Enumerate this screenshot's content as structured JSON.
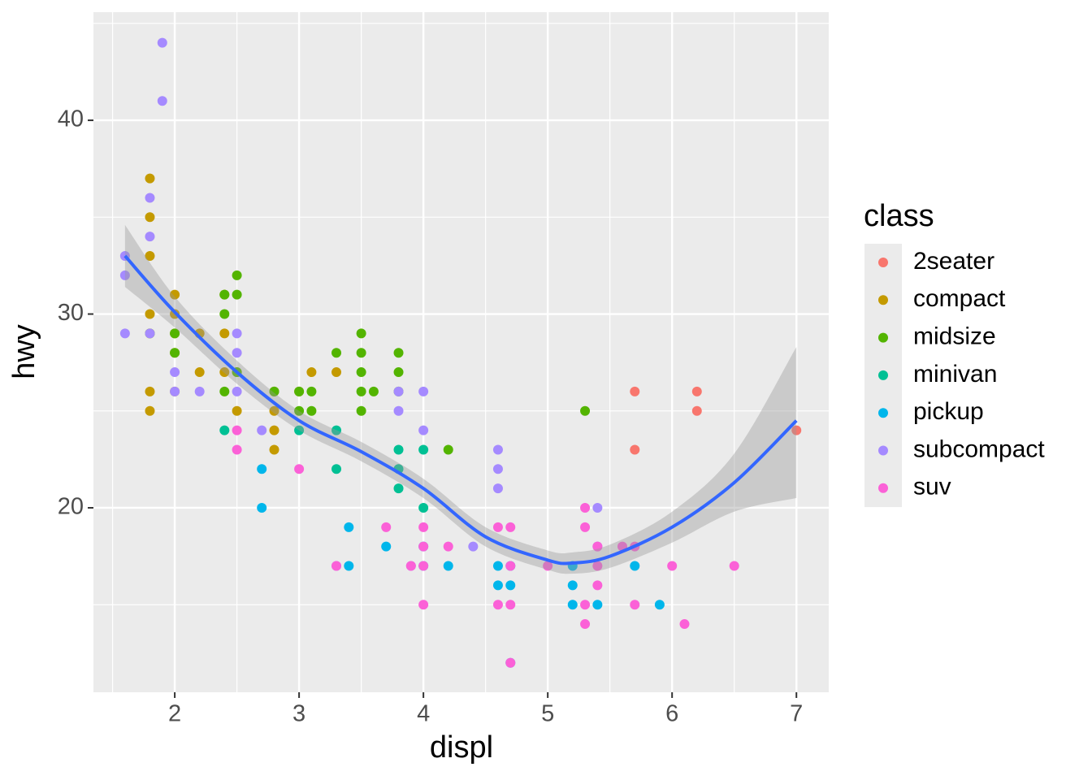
{
  "chart_data": {
    "type": "scatter",
    "x_label": "displ",
    "y_label": "hwy",
    "legend_title": "class",
    "xlim": [
      1.346,
      7.26
    ],
    "ylim": [
      10.48,
      45.58
    ],
    "xticks": [
      2,
      3,
      4,
      5,
      6,
      7
    ],
    "yticks": [
      20,
      30,
      40
    ],
    "x_minor_grid": [
      1.5,
      2.5,
      3.5,
      4.5,
      5.5,
      6.5
    ],
    "y_minor_grid": [
      15,
      25,
      35,
      45
    ],
    "grid": true,
    "legend_position": "right",
    "series": [
      {
        "name": "2seater",
        "color": "#F8766D",
        "x": [
          5.7,
          5.7,
          6.2,
          6.2,
          7.0
        ],
        "y": [
          26,
          23,
          26,
          25,
          24
        ]
      },
      {
        "name": "compact",
        "color": "#C49A00",
        "x": [
          1.8,
          1.8,
          1.8,
          1.8,
          1.8,
          1.8,
          1.8,
          2.0,
          2.0,
          2.0,
          2.0,
          2.0,
          2.2,
          2.2,
          2.4,
          2.4,
          2.4,
          2.5,
          2.5,
          2.8,
          2.8,
          2.8,
          2.8,
          3.0,
          3.1,
          3.3
        ],
        "y": [
          37,
          35,
          33,
          30,
          29,
          26,
          25,
          31,
          30,
          29,
          28,
          26,
          29,
          27,
          31,
          29,
          27,
          27,
          25,
          26,
          25,
          24,
          23,
          26,
          27,
          27
        ]
      },
      {
        "name": "midsize",
        "color": "#53B400",
        "x": [
          1.8,
          2.0,
          2.0,
          2.4,
          2.4,
          2.4,
          2.5,
          2.5,
          2.5,
          2.8,
          3.0,
          3.0,
          3.1,
          3.1,
          3.3,
          3.5,
          3.5,
          3.5,
          3.5,
          3.5,
          3.6,
          3.8,
          3.8,
          3.8,
          4.2,
          5.3
        ],
        "y": [
          29,
          29,
          28,
          31,
          30,
          26,
          32,
          31,
          27,
          26,
          26,
          25,
          26,
          25,
          28,
          29,
          28,
          27,
          26,
          25,
          26,
          28,
          27,
          26,
          23,
          25
        ]
      },
      {
        "name": "minivan",
        "color": "#00C094",
        "x": [
          2.4,
          3.0,
          3.3,
          3.3,
          3.8,
          3.8,
          3.8,
          4.0,
          4.0
        ],
        "y": [
          24,
          24,
          24,
          22,
          23,
          22,
          21,
          23,
          20
        ]
      },
      {
        "name": "pickup",
        "color": "#00B6EB",
        "x": [
          2.7,
          2.7,
          3.4,
          3.4,
          3.7,
          4.0,
          4.0,
          4.2,
          4.6,
          4.6,
          4.7,
          4.7,
          4.7,
          5.2,
          5.2,
          5.2,
          5.4,
          5.7,
          5.9
        ],
        "y": [
          22,
          20,
          19,
          17,
          18,
          18,
          17,
          17,
          17,
          16,
          17,
          16,
          12,
          17,
          16,
          15,
          15,
          17,
          15
        ]
      },
      {
        "name": "subcompact",
        "color": "#A58AFF",
        "x": [
          1.6,
          1.6,
          1.6,
          1.8,
          1.8,
          1.8,
          1.9,
          1.9,
          2.0,
          2.0,
          2.2,
          2.5,
          2.5,
          2.5,
          2.7,
          3.8,
          3.8,
          4.0,
          4.0,
          4.6,
          4.6,
          4.6,
          5.4,
          3.3,
          3.9,
          4.4,
          5.4
        ],
        "y": [
          33,
          32,
          29,
          36,
          34,
          29,
          44,
          41,
          27,
          26,
          26,
          29,
          28,
          26,
          24,
          26,
          25,
          26,
          24,
          23,
          22,
          21,
          20,
          17,
          17,
          18,
          18
        ]
      },
      {
        "name": "suv",
        "color": "#FB61D7",
        "x": [
          2.5,
          2.5,
          3.0,
          3.3,
          3.7,
          3.9,
          4.0,
          4.0,
          4.0,
          4.0,
          4.2,
          4.6,
          4.6,
          4.7,
          4.7,
          4.7,
          5.0,
          5.3,
          5.3,
          5.3,
          5.3,
          5.4,
          5.4,
          5.4,
          5.6,
          5.7,
          5.7,
          6.0,
          6.1,
          6.5,
          4.7
        ],
        "y": [
          24,
          23,
          22,
          17,
          19,
          17,
          19,
          18,
          17,
          15,
          18,
          19,
          15,
          19,
          17,
          15,
          17,
          20,
          19,
          15,
          14,
          18,
          17,
          16,
          18,
          18,
          15,
          17,
          14,
          17,
          12
        ]
      }
    ],
    "smooth": {
      "color": "#3366FF",
      "band_color": "#999999",
      "x": [
        1.6,
        2.0,
        2.5,
        3.0,
        3.5,
        4.0,
        4.5,
        5.0,
        5.2,
        5.5,
        6.0,
        6.5,
        7.0
      ],
      "y": [
        33.0,
        30.1,
        27.0,
        24.5,
        22.9,
        21.0,
        18.5,
        17.3,
        17.15,
        17.5,
        19.0,
        21.3,
        24.5
      ],
      "ymin": [
        31.4,
        29.3,
        26.4,
        24.0,
        22.4,
        20.5,
        18.0,
        16.8,
        16.6,
        16.9,
        18.2,
        19.8,
        20.5
      ],
      "ymax": [
        34.6,
        30.9,
        27.6,
        25.0,
        23.4,
        21.5,
        19.0,
        17.8,
        17.7,
        18.1,
        19.8,
        22.8,
        28.3
      ]
    }
  }
}
